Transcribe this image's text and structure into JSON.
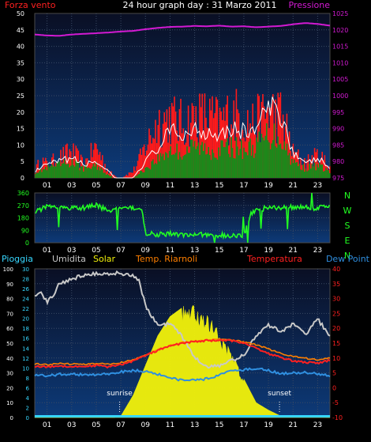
{
  "title": "24 hour graph day : 31 Marzo 2011",
  "colors": {
    "background": "#000000",
    "plot_bg_top": "#0a0f24",
    "plot_bg_bottom": "#0d3a78",
    "wind": "#ff1a1a",
    "gust": "#ffffff",
    "wind_avg": "#1a8a1a",
    "pressure": "#d21ad2",
    "direction": "#22ff22",
    "humidity": "#c8c8c8",
    "solar": "#f2f20a",
    "temp_indoor": "#ff7f00",
    "temperature": "#ff2020",
    "dewpoint": "#2f8fe0",
    "rain": "#37d7ff",
    "axis_text": "#ffffff"
  },
  "chart_data": [
    {
      "type": "area",
      "name": "wind-pressure",
      "left_label": "Forza vento",
      "right_label": "Pressione",
      "left_axis": {
        "min": 0,
        "max": 50,
        "ticks": [
          0,
          5,
          10,
          15,
          20,
          25,
          30,
          35,
          40,
          45,
          50
        ]
      },
      "right_axis": {
        "min": 975,
        "max": 1025,
        "ticks": [
          975,
          980,
          985,
          990,
          995,
          1000,
          1005,
          1010,
          1015,
          1020,
          1025
        ]
      },
      "x_labels": [
        "01",
        "03",
        "05",
        "07",
        "09",
        "11",
        "13",
        "15",
        "17",
        "19",
        "21",
        "23"
      ],
      "series": [
        {
          "name": "wind_gust_envelope",
          "x": [
            0,
            0.5,
            1,
            2,
            3,
            4,
            5,
            6,
            6.5,
            7,
            8,
            8.5,
            9,
            10,
            11,
            12,
            13,
            14,
            15,
            16,
            17,
            17.5,
            18,
            19,
            20,
            20.5,
            21,
            22,
            23,
            24
          ],
          "y": [
            3,
            8,
            6,
            9,
            12,
            6,
            14,
            3,
            1,
            0,
            3,
            8,
            14,
            25,
            27,
            24,
            27,
            28,
            25,
            29,
            27,
            24,
            25,
            30,
            28,
            21,
            11,
            7,
            10,
            6
          ]
        },
        {
          "name": "gust",
          "x": [
            0,
            1,
            2,
            3,
            4,
            5,
            6,
            6.5,
            7,
            8,
            9,
            10,
            11,
            12,
            13,
            14,
            15,
            16,
            17,
            18,
            19,
            20,
            20.5,
            21,
            22,
            23,
            24
          ],
          "y": [
            2,
            4,
            5,
            6,
            4,
            5,
            2,
            0,
            0,
            0,
            5,
            9,
            14,
            13,
            15,
            14,
            14,
            15,
            14,
            15,
            21,
            20,
            14,
            8,
            4,
            6,
            3
          ]
        },
        {
          "name": "wind_avg",
          "x": [
            0,
            1,
            2,
            3,
            4,
            5,
            6,
            6.5,
            7,
            8,
            9,
            10,
            11,
            12,
            13,
            14,
            15,
            16,
            17,
            18,
            19,
            20,
            20.5,
            21,
            22,
            23,
            24
          ],
          "y": [
            2,
            3,
            4,
            5,
            3,
            4,
            1,
            0,
            0,
            0,
            3,
            6,
            9,
            8,
            10,
            9,
            9,
            10,
            9,
            10,
            14,
            13,
            9,
            5,
            3,
            4,
            2
          ]
        },
        {
          "name": "pressione",
          "x": [
            0,
            1,
            2,
            3,
            4,
            5,
            6,
            7,
            8,
            9,
            10,
            11,
            12,
            13,
            14,
            15,
            16,
            17,
            18,
            19,
            20,
            21,
            22,
            23,
            24
          ],
          "y": [
            1018.6,
            1018.3,
            1018.2,
            1018.6,
            1018.8,
            1019.0,
            1019.2,
            1019.5,
            1019.7,
            1020.2,
            1020.6,
            1020.9,
            1021.0,
            1021.2,
            1021.1,
            1021.3,
            1021.0,
            1021.1,
            1020.8,
            1021.0,
            1021.2,
            1021.7,
            1022.1,
            1021.8,
            1021.3
          ]
        }
      ]
    },
    {
      "type": "line",
      "name": "wind-direction",
      "right_letters": [
        "N",
        "W",
        "S",
        "E",
        "N"
      ],
      "axis": {
        "min": 0,
        "max": 360,
        "ticks": [
          0,
          90,
          180,
          270,
          360
        ]
      },
      "x_labels": [
        "01",
        "03",
        "05",
        "07",
        "09",
        "11",
        "13",
        "15",
        "17",
        "19",
        "21",
        "23"
      ],
      "series": [
        {
          "name": "direzione",
          "x": [
            0,
            1,
            2,
            3,
            4,
            5,
            6,
            7,
            8,
            8.7,
            9,
            10,
            11,
            12,
            13,
            14,
            15,
            16,
            17,
            17.6,
            18,
            19,
            20,
            21,
            22,
            23,
            23.5,
            24
          ],
          "y": [
            225,
            260,
            245,
            255,
            250,
            270,
            235,
            240,
            250,
            235,
            70,
            60,
            65,
            55,
            60,
            60,
            55,
            50,
            55,
            210,
            235,
            255,
            250,
            260,
            255,
            240,
            270,
            255
          ]
        }
      ]
    },
    {
      "type": "area",
      "name": "temperature-humidity-solar",
      "legend": [
        "Pioggia",
        "Umidita",
        "Solar",
        "Temp. Riarnoli",
        "Temperatura",
        "Dew Point"
      ],
      "left_axis": {
        "min": 0,
        "max": 100,
        "ticks": [
          0,
          10,
          20,
          30,
          40,
          50,
          60,
          70,
          80,
          90,
          100
        ]
      },
      "rain_axis": {
        "min": 0,
        "max": 30,
        "ticks": [
          0,
          2,
          4,
          6,
          8,
          10,
          12,
          14,
          16,
          18,
          20,
          22,
          24,
          26,
          28,
          30
        ]
      },
      "right_axis": {
        "min": -10,
        "max": 40,
        "ticks": [
          -10,
          -5,
          0,
          5,
          10,
          15,
          20,
          25,
          30,
          35,
          40
        ]
      },
      "x_labels": [
        "01",
        "03",
        "05",
        "07",
        "09",
        "11",
        "13",
        "15",
        "17",
        "19",
        "21",
        "23"
      ],
      "annotations": [
        {
          "text": "sunrise",
          "x": 6.9
        },
        {
          "text": "sunset",
          "x": 19.9
        }
      ],
      "series": [
        {
          "name": "solar",
          "x": [
            0,
            6.5,
            7,
            8,
            9,
            10,
            11,
            12,
            12.5,
            13,
            14,
            15,
            16,
            17,
            17.5,
            18,
            19,
            20,
            24
          ],
          "y": [
            0,
            0,
            1,
            15,
            35,
            55,
            68,
            74,
            79,
            75,
            70,
            58,
            45,
            26,
            18,
            10,
            5,
            1,
            0
          ]
        },
        {
          "name": "umidita",
          "x": [
            0,
            0.5,
            1,
            1.5,
            2,
            3,
            4,
            5,
            6,
            7,
            8,
            8.5,
            9,
            10,
            11,
            11.5,
            12,
            12.5,
            13,
            14,
            15,
            16,
            17,
            18,
            19,
            20,
            21,
            22,
            23,
            24
          ],
          "y": [
            83,
            84,
            78,
            82,
            90,
            93,
            96,
            97,
            97,
            97,
            96,
            92,
            75,
            62,
            63,
            60,
            54,
            48,
            40,
            34,
            35,
            38,
            42,
            55,
            62,
            58,
            63,
            56,
            66,
            55
          ]
        },
        {
          "name": "temp_riarnoli",
          "x": [
            0,
            1,
            2,
            3,
            4,
            5,
            6,
            7,
            8,
            9,
            10,
            11,
            12,
            13,
            14,
            15,
            16,
            17,
            18,
            19,
            20,
            21,
            22,
            23,
            24
          ],
          "y": [
            8.0,
            7.8,
            8.1,
            8.0,
            7.9,
            8.2,
            7.9,
            8.5,
            9.5,
            11.0,
            12.8,
            14.3,
            15.2,
            15.7,
            16.0,
            16.2,
            16.0,
            15.5,
            14.5,
            13.0,
            11.6,
            10.6,
            10.0,
            9.3,
            10.2
          ]
        },
        {
          "name": "temperatura",
          "x": [
            0,
            1,
            2,
            3,
            4,
            5,
            6,
            7,
            8,
            9,
            10,
            11,
            12,
            13,
            14,
            15,
            16,
            17,
            18,
            19,
            20,
            21,
            22,
            23,
            24
          ],
          "y": [
            7.2,
            7.0,
            7.4,
            7.1,
            7.2,
            7.5,
            7.0,
            7.8,
            9.0,
            10.8,
            12.6,
            14.0,
            15.0,
            15.5,
            15.9,
            15.9,
            15.8,
            15.1,
            13.4,
            11.5,
            10.2,
            9.0,
            8.6,
            8.2,
            9.3
          ]
        },
        {
          "name": "dew_point",
          "x": [
            0,
            1,
            2,
            3,
            4,
            5,
            6,
            7,
            8,
            9,
            10,
            11,
            12,
            13,
            14,
            15,
            16,
            17,
            18,
            19,
            20,
            21,
            22,
            23,
            24
          ],
          "y": [
            4.4,
            4.0,
            4.5,
            4.6,
            4.3,
            4.5,
            4.6,
            5.4,
            5.8,
            5.5,
            4.5,
            3.5,
            2.5,
            2.6,
            3.0,
            4.2,
            5.6,
            6.0,
            6.6,
            5.8,
            4.8,
            5.0,
            5.2,
            4.6,
            3.9
          ]
        },
        {
          "name": "pioggia",
          "x": [
            0,
            24
          ],
          "y": [
            0,
            0
          ]
        }
      ]
    }
  ]
}
